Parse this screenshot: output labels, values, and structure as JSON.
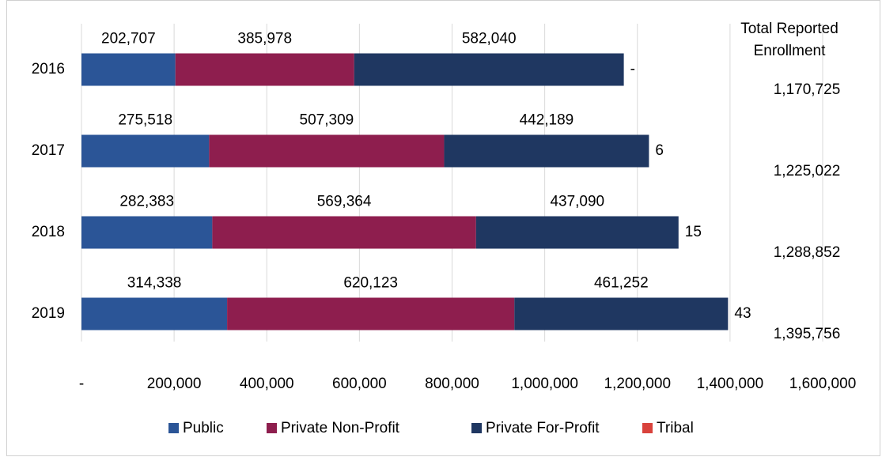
{
  "chart_data": {
    "type": "stacked-barh",
    "categories": [
      "2016",
      "2017",
      "2018",
      "2019"
    ],
    "series": [
      {
        "name": "Public",
        "color": "#2b5597",
        "values": [
          202707,
          275518,
          282383,
          314338
        ],
        "value_labels": [
          "202,707",
          "275,518",
          "282,383",
          "314,338"
        ]
      },
      {
        "name": "Private Non-Profit",
        "color": "#8e1e4e",
        "values": [
          385978,
          507309,
          569364,
          620123
        ],
        "value_labels": [
          "385,978",
          "507,309",
          "569,364",
          "620,123"
        ]
      },
      {
        "name": "Private For-Profit",
        "color": "#1f3761",
        "values": [
          582040,
          442189,
          437090,
          461252
        ],
        "value_labels": [
          "582,040",
          "442,189",
          "437,090",
          "461,252"
        ]
      },
      {
        "name": "Tribal",
        "color": "#d9423c",
        "values": [
          0,
          6,
          15,
          43
        ],
        "value_labels": [
          "-",
          "6",
          "15",
          "43"
        ]
      }
    ],
    "totals": {
      "name": "Total Reported Enrollment",
      "values": [
        1170725,
        1225022,
        1288852,
        1395756
      ],
      "value_labels": [
        "1,170,725",
        "1,225,022",
        "1,288,852",
        "1,395,756"
      ]
    },
    "xlim": [
      0,
      1600000
    ],
    "xticks": [
      {
        "value": 0,
        "label": "-"
      },
      {
        "value": 200000,
        "label": "200,000"
      },
      {
        "value": 400000,
        "label": "400,000"
      },
      {
        "value": 600000,
        "label": "600,000"
      },
      {
        "value": 800000,
        "label": "800,000"
      },
      {
        "value": 1000000,
        "label": "1,000,000"
      },
      {
        "value": 1200000,
        "label": "1,200,000"
      },
      {
        "value": 1400000,
        "label": "1,400,000"
      },
      {
        "value": 1600000,
        "label": "1,600,000"
      }
    ],
    "grid": true,
    "legend": "bottom"
  }
}
